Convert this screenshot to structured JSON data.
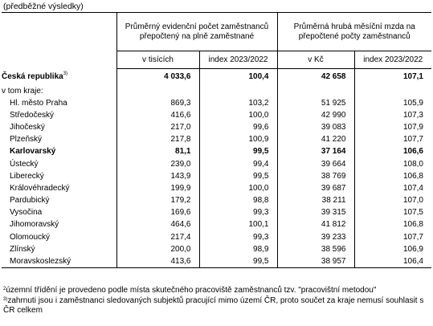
{
  "subtitle": "(předběžné výsledky)",
  "header": {
    "group1": "Průměrný evidenční počet zaměstnanců přepočtený na plně zaměstnané",
    "group2": "Průměrná hrubá měsíční mzda na přepočtené počty zaměstnanců",
    "sub1": "v tisících",
    "sub2": "index 2023/2022",
    "sub3": "v Kč",
    "sub4": "index 2023/2022"
  },
  "total": {
    "name": "Česká republika",
    "mark": "3)",
    "emp": "4 033,6",
    "emp_idx": "100,4",
    "wage": "42 658",
    "wage_idx": "107,1"
  },
  "intro": "v tom kraje:",
  "rows": [
    {
      "name": "Hl. město Praha",
      "emp": "869,3",
      "emp_idx": "103,2",
      "wage": "51 925",
      "wage_idx": "105,9"
    },
    {
      "name": "Středočeský",
      "emp": "416,6",
      "emp_idx": "100,0",
      "wage": "42 990",
      "wage_idx": "107,3"
    },
    {
      "name": "Jihočeský",
      "emp": "217,0",
      "emp_idx": "99,6",
      "wage": "39 083",
      "wage_idx": "107,9"
    },
    {
      "name": "Plzeňský",
      "emp": "217,8",
      "emp_idx": "100,9",
      "wage": "41 220",
      "wage_idx": "107,7"
    },
    {
      "name": "Karlovarský",
      "emp": "81,1",
      "emp_idx": "99,5",
      "wage": "37 164",
      "wage_idx": "106,6",
      "bold": true
    },
    {
      "name": "Ústecký",
      "emp": "239,0",
      "emp_idx": "99,4",
      "wage": "39 664",
      "wage_idx": "108,0"
    },
    {
      "name": "Liberecký",
      "emp": "143,9",
      "emp_idx": "99,5",
      "wage": "38 769",
      "wage_idx": "106,8"
    },
    {
      "name": "Královéhradecký",
      "emp": "199,9",
      "emp_idx": "100,0",
      "wage": "39 687",
      "wage_idx": "107,4"
    },
    {
      "name": "Pardubický",
      "emp": "179,2",
      "emp_idx": "98,8",
      "wage": "38 211",
      "wage_idx": "107,0"
    },
    {
      "name": "Vysočina",
      "emp": "169,6",
      "emp_idx": "99,3",
      "wage": "39 315",
      "wage_idx": "107,5"
    },
    {
      "name": "Jihomoravský",
      "emp": "464,6",
      "emp_idx": "100,1",
      "wage": "41 812",
      "wage_idx": "106,8"
    },
    {
      "name": "Olomoucký",
      "emp": "217,4",
      "emp_idx": "99,3",
      "wage": "39 233",
      "wage_idx": "107,7"
    },
    {
      "name": "Zlínský",
      "emp": "200,0",
      "emp_idx": "98,9",
      "wage": "38 596",
      "wage_idx": "106,9"
    },
    {
      "name": "Moravskoslezský",
      "emp": "413,6",
      "emp_idx": "99,5",
      "wage": "38 957",
      "wage_idx": "106,4"
    }
  ],
  "notes": {
    "n2_mark": "2",
    "n2_text": "územní třídění je provedeno podle místa skutečného pracoviště zaměstnanců tzv. \"pracovištní metodou\"",
    "n3_mark": "3)",
    "n3_text": "zahrnuti jsou i zaměstnanci sledovaných subjektů pracující mimo území ČR, proto součet za kraje nemusí souhlasit s ČR celkem"
  }
}
